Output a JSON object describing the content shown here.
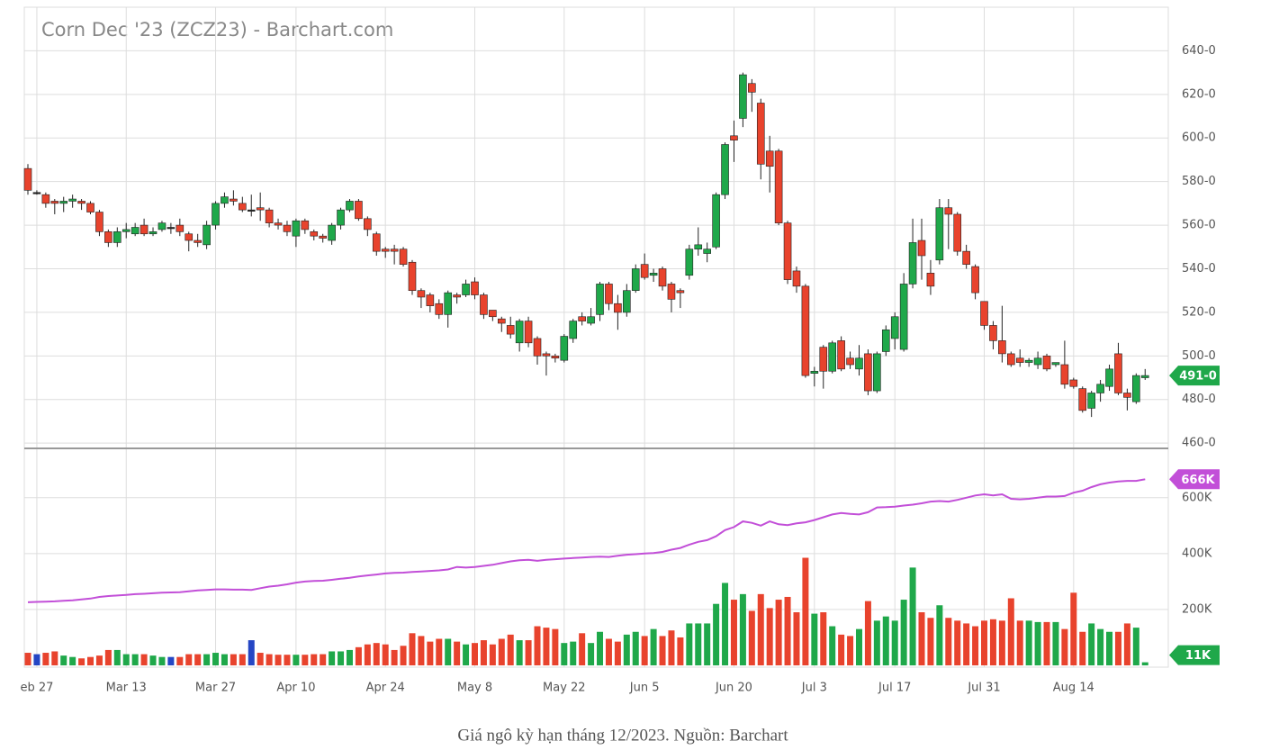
{
  "chart_data": {
    "type": "candlestick",
    "title": "Corn Dec '23 (ZCZ23) - Barchart.com",
    "categories": [
      null,
      "eb 27",
      null,
      null,
      null,
      null,
      null,
      null,
      null,
      null,
      null,
      "Mar 13",
      null,
      null,
      null,
      null,
      null,
      null,
      null,
      null,
      null,
      "Mar 27",
      null,
      null,
      null,
      null,
      null,
      null,
      null,
      null,
      "Apr 10",
      null,
      null,
      null,
      null,
      null,
      null,
      null,
      null,
      null,
      "Apr 24",
      null,
      null,
      null,
      null,
      null,
      null,
      null,
      null,
      null,
      "May 8",
      null,
      null,
      null,
      null,
      null,
      null,
      null,
      null,
      null,
      "May 22",
      null,
      null,
      null,
      null,
      null,
      null,
      null,
      null,
      "Jun 5",
      null,
      null,
      null,
      null,
      null,
      null,
      null,
      null,
      null,
      "Jun 20",
      null,
      null,
      null,
      null,
      null,
      null,
      null,
      null,
      "Jul 3",
      null,
      null,
      null,
      null,
      null,
      null,
      null,
      null,
      "Jul 17",
      null,
      null,
      null,
      null,
      null,
      null,
      null,
      null,
      null,
      "Jul 31",
      null,
      null,
      null,
      null,
      null,
      null,
      null,
      null,
      null,
      "Aug 14",
      null,
      null,
      null,
      null,
      null,
      null,
      null,
      null
    ],
    "open": [
      586,
      575,
      574,
      571,
      570,
      571,
      571,
      570,
      566,
      557,
      552,
      557,
      556,
      560,
      556,
      558,
      559,
      560,
      556,
      553,
      551,
      560,
      570,
      572,
      570,
      567,
      568,
      567,
      561,
      560,
      555,
      562,
      557,
      555,
      553,
      560,
      567,
      571,
      563,
      556,
      549,
      549,
      549,
      543,
      530,
      528,
      524,
      519,
      528,
      528,
      534,
      528,
      521,
      517,
      514,
      506,
      516,
      508,
      501,
      500,
      498,
      508,
      518,
      515,
      519,
      533,
      524,
      520,
      530,
      542,
      537,
      540,
      533,
      530,
      537,
      549,
      547,
      550,
      574,
      601,
      609,
      625,
      616,
      594,
      594,
      561,
      539,
      532,
      492,
      504,
      493,
      507,
      499,
      494,
      501,
      484,
      502,
      508,
      503,
      533,
      553,
      538,
      544,
      568,
      565,
      548,
      541,
      525,
      514,
      507,
      501,
      499,
      497,
      496,
      500,
      496,
      496,
      489,
      485,
      476,
      483,
      486,
      501,
      483,
      479,
      490
    ],
    "high": [
      588,
      576,
      575,
      572,
      573,
      574,
      572,
      571,
      567,
      558,
      559,
      561,
      561,
      563,
      559,
      562,
      561,
      563,
      557,
      556,
      562,
      571,
      575,
      576,
      573,
      574,
      575,
      568,
      563,
      562,
      563,
      563,
      558,
      556,
      561,
      568,
      572,
      572,
      564,
      557,
      550,
      551,
      550,
      544,
      531,
      529,
      526,
      530,
      529,
      535,
      536,
      529,
      521,
      518,
      518,
      517,
      518,
      509,
      502,
      501,
      510,
      517,
      520,
      522,
      534,
      534,
      528,
      533,
      542,
      547,
      540,
      541,
      534,
      531,
      551,
      559,
      552,
      575,
      598,
      608,
      630,
      627,
      618,
      601,
      595,
      562,
      541,
      533,
      495,
      505,
      507,
      509,
      502,
      505,
      503,
      502,
      514,
      520,
      538,
      563,
      563,
      544,
      572,
      572,
      566,
      551,
      542,
      525,
      516,
      523,
      502,
      503,
      499,
      502,
      501,
      497,
      507,
      490,
      486,
      484,
      489,
      496,
      506,
      485,
      492,
      494
    ],
    "low": [
      574,
      574,
      568,
      565,
      566,
      568,
      567,
      565,
      555,
      550,
      550,
      554,
      555,
      555,
      555,
      557,
      556,
      555,
      548,
      550,
      549,
      558,
      568,
      569,
      566,
      564,
      562,
      559,
      558,
      555,
      550,
      556,
      553,
      552,
      551,
      558,
      566,
      562,
      555,
      546,
      545,
      542,
      541,
      528,
      522,
      520,
      517,
      513,
      524,
      527,
      526,
      517,
      516,
      511,
      508,
      502,
      504,
      496,
      491,
      497,
      497,
      506,
      514,
      514,
      516,
      521,
      512,
      518,
      529,
      535,
      534,
      530,
      520,
      522,
      535,
      546,
      543,
      549,
      572,
      589,
      605,
      612,
      581,
      575,
      560,
      533,
      529,
      490,
      486,
      485,
      492,
      493,
      494,
      491,
      482,
      483,
      500,
      503,
      502,
      531,
      535,
      528,
      542,
      549,
      546,
      540,
      526,
      512,
      503,
      497,
      495,
      495,
      495,
      494,
      493,
      495,
      485,
      485,
      474,
      472,
      479,
      484,
      482,
      475,
      478,
      489
    ],
    "close": [
      576,
      575,
      570,
      570,
      571,
      572,
      570,
      566,
      557,
      552,
      557,
      558,
      559,
      556,
      557,
      561,
      559,
      557,
      553,
      552,
      560,
      570,
      573,
      571,
      567,
      567,
      567,
      561,
      560,
      557,
      562,
      558,
      555,
      554,
      560,
      567,
      571,
      563,
      558,
      548,
      548,
      548,
      542,
      530,
      527,
      523,
      519,
      529,
      527,
      533,
      528,
      519,
      518,
      515,
      510,
      516,
      506,
      500,
      500,
      499,
      509,
      516,
      516,
      518,
      533,
      524,
      520,
      530,
      540,
      536,
      538,
      532,
      526,
      529,
      549,
      551,
      549,
      574,
      597,
      599,
      629,
      621,
      588,
      587,
      561,
      535,
      532,
      491,
      493,
      493,
      506,
      494,
      496,
      499,
      484,
      501,
      512,
      518,
      533,
      552,
      546,
      532,
      568,
      565,
      548,
      542,
      529,
      514,
      507,
      501,
      496,
      497,
      498,
      499,
      494,
      497,
      487,
      486,
      475,
      483,
      487,
      494,
      483,
      481,
      491,
      491
    ],
    "volume": [
      45000,
      40000,
      45000,
      50000,
      35000,
      30000,
      25000,
      30000,
      35000,
      55000,
      55000,
      40000,
      40000,
      40000,
      35000,
      30000,
      30000,
      30000,
      40000,
      40000,
      40000,
      45000,
      40000,
      40000,
      40000,
      90000,
      45000,
      40000,
      38000,
      38000,
      38000,
      38000,
      40000,
      40000,
      50000,
      50000,
      55000,
      65000,
      75000,
      80000,
      75000,
      55000,
      70000,
      115000,
      105000,
      85000,
      95000,
      95000,
      85000,
      75000,
      80000,
      90000,
      75000,
      95000,
      110000,
      90000,
      90000,
      140000,
      135000,
      130000,
      80000,
      85000,
      115000,
      80000,
      120000,
      95000,
      85000,
      110000,
      120000,
      105000,
      130000,
      105000,
      125000,
      100000,
      150000,
      150000,
      150000,
      220000,
      295000,
      235000,
      255000,
      195000,
      255000,
      205000,
      235000,
      245000,
      190000,
      385000,
      185000,
      190000,
      140000,
      110000,
      105000,
      130000,
      230000,
      160000,
      175000,
      160000,
      235000,
      350000,
      190000,
      170000,
      215000,
      170000,
      160000,
      150000,
      140000,
      160000,
      165000,
      160000,
      240000,
      160000,
      160000,
      155000,
      155000,
      155000,
      130000,
      260000,
      120000,
      150000,
      130000,
      120000,
      120000,
      150000,
      135000,
      11000
    ],
    "open_interest": [
      226000,
      227000,
      228000,
      229000,
      231000,
      233000,
      236000,
      239000,
      245000,
      248000,
      250000,
      252000,
      255000,
      256000,
      258000,
      260000,
      261000,
      262000,
      265000,
      268000,
      270000,
      272000,
      272000,
      271000,
      271000,
      270000,
      276000,
      282000,
      285000,
      290000,
      296000,
      300000,
      302000,
      303000,
      306000,
      310000,
      313000,
      318000,
      322000,
      325000,
      329000,
      331000,
      332000,
      334000,
      336000,
      338000,
      340000,
      343000,
      352000,
      350000,
      352000,
      356000,
      360000,
      366000,
      372000,
      376000,
      378000,
      374000,
      378000,
      380000,
      382000,
      384000,
      386000,
      388000,
      389000,
      388000,
      392000,
      396000,
      398000,
      400000,
      402000,
      406000,
      414000,
      420000,
      432000,
      442000,
      448000,
      462000,
      484000,
      495000,
      515000,
      510000,
      500000,
      515000,
      505000,
      502000,
      508000,
      512000,
      520000,
      530000,
      540000,
      545000,
      542000,
      540000,
      548000,
      565000,
      566000,
      568000,
      572000,
      575000,
      580000,
      586000,
      588000,
      586000,
      592000,
      600000,
      608000,
      612000,
      608000,
      612000,
      596000,
      594000,
      596000,
      600000,
      604000,
      604000,
      606000,
      618000,
      625000,
      638000,
      648000,
      654000,
      658000,
      660000,
      660000,
      666000
    ],
    "up_color": "#1fa84a",
    "down_color": "#e8432d",
    "unchanged_color": "#2546c4",
    "oi_color": "#c24fd8",
    "ylim": [
      458,
      660
    ],
    "yticks": [
      {
        "value": 460,
        "label": "460-0"
      },
      {
        "value": 480,
        "label": "480-0"
      },
      {
        "value": 500,
        "label": "500-0"
      },
      {
        "value": 520,
        "label": "520-0"
      },
      {
        "value": 540,
        "label": "540-0"
      },
      {
        "value": 560,
        "label": "560-0"
      },
      {
        "value": 580,
        "label": "580-0"
      },
      {
        "value": 600,
        "label": "600-0"
      },
      {
        "value": 620,
        "label": "620-0"
      },
      {
        "value": 640,
        "label": "640-0"
      }
    ],
    "y2lim": [
      0,
      770000
    ],
    "y2ticks": [
      {
        "value": 200000,
        "label": "200K"
      },
      {
        "value": 400000,
        "label": "400K"
      },
      {
        "value": 600000,
        "label": "600K"
      }
    ],
    "last_price": {
      "value": 491,
      "label": "491-0"
    },
    "last_open_interest": {
      "value": 666000,
      "label": "666K"
    },
    "last_volume": {
      "value": 11000,
      "label": "11K"
    },
    "grid": true
  },
  "caption": "Giá ngô kỳ hạn tháng 12/2023. Nguồn: Barchart"
}
